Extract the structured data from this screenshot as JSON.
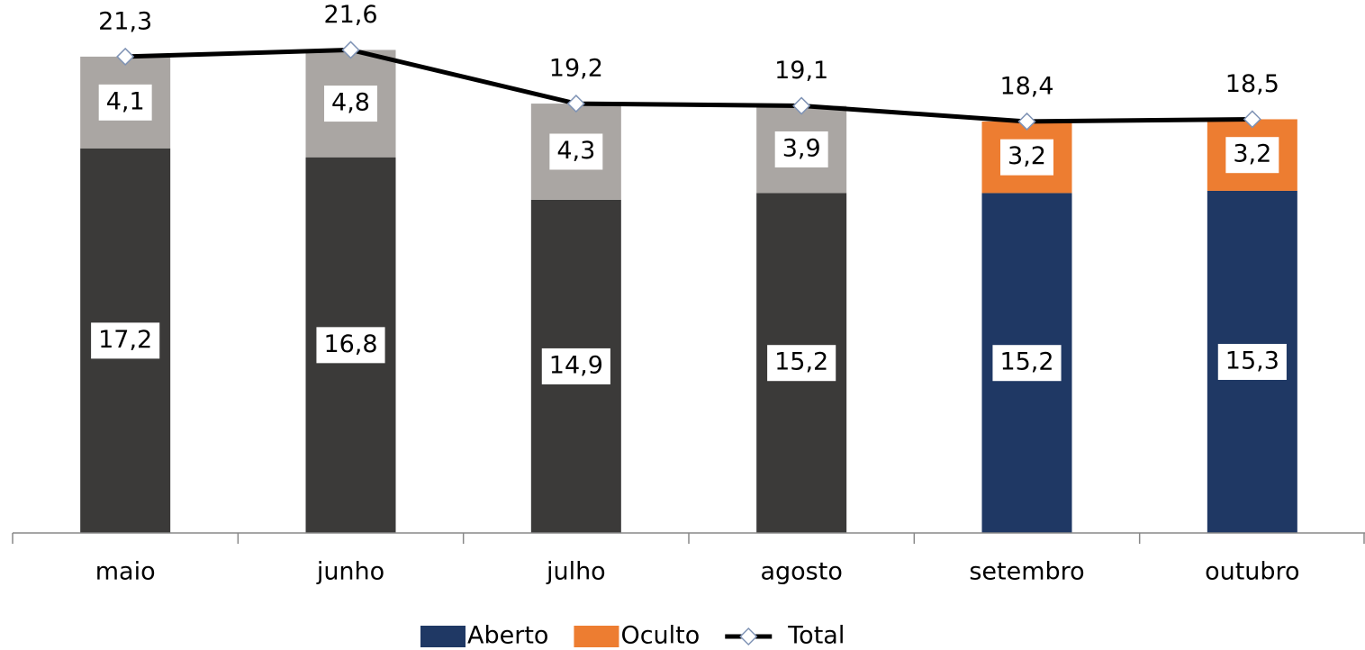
{
  "chart_data": {
    "type": "bar",
    "categories": [
      "maio",
      "junho",
      "julho",
      "agosto",
      "setembro",
      "outubro"
    ],
    "stacked": true,
    "series": [
      {
        "name": "Aberto",
        "color": "#1f3864",
        "colors": [
          "#3b3a39",
          "#3b3a39",
          "#3b3a39",
          "#3b3a39",
          "#1f3864",
          "#1f3864"
        ],
        "values": [
          17.2,
          16.8,
          14.9,
          15.2,
          15.2,
          15.3
        ],
        "value_labels": [
          "17,2",
          "16,8",
          "14,9",
          "15,2",
          "15,2",
          "15,3"
        ]
      },
      {
        "name": "Oculto",
        "color": "#ed7d31",
        "colors": [
          "#aaa6a3",
          "#aaa6a3",
          "#aaa6a3",
          "#aaa6a3",
          "#ed7d31",
          "#ed7d31"
        ],
        "values": [
          4.1,
          4.8,
          4.3,
          3.9,
          3.2,
          3.2
        ],
        "value_labels": [
          "4,1",
          "4,8",
          "4,3",
          "3,9",
          "3,2",
          "3,2"
        ]
      },
      {
        "name": "Total",
        "type": "line",
        "color": "#000000",
        "marker_color": "#7f93b5",
        "values": [
          21.3,
          21.6,
          19.2,
          19.1,
          18.4,
          18.5
        ],
        "value_labels": [
          "21,3",
          "21,6",
          "19,2",
          "19,1",
          "18,4",
          "18,5"
        ]
      }
    ],
    "legend": "bottom"
  }
}
